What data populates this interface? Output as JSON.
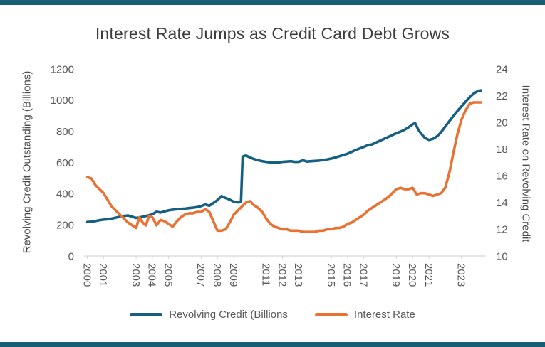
{
  "palette": {
    "accent_teal": "#156082",
    "accent_orange": "#E97132",
    "frame_bar": "#175E74",
    "title_text": "#3d3d3d",
    "axis_text": "#595959",
    "axis_line": "#d6d6d6"
  },
  "chart_data": {
    "type": "line",
    "title": "Interest Rate Jumps as Credit Card Debt Grows",
    "grid": false,
    "legend_position": "bottom",
    "x_range": [
      1999.8,
      24.7
    ],
    "x_domain": [
      1999.8,
      2024.5
    ],
    "x_tick_years": [
      2000,
      2001,
      2003,
      2004,
      2005,
      2007,
      2008,
      2009,
      2011,
      2012,
      2013,
      2015,
      2016,
      2017,
      2019,
      2020,
      2021,
      2023
    ],
    "x_tick_labels": [
      "2000",
      "2001",
      "2003",
      "2004",
      "2005",
      "2007",
      "2008",
      "2009",
      "2011",
      "2012",
      "2013",
      "2015",
      "2016",
      "2017",
      "2019",
      "2020",
      "2021",
      "2023"
    ],
    "left_axis": {
      "title": "Revolving Credit Outstanding (Billions)",
      "min": 0,
      "max": 1200,
      "step": 200,
      "ticks": [
        0,
        200,
        400,
        600,
        800,
        1000,
        1200
      ]
    },
    "right_axis": {
      "title": "Interest Rate on Revolving Credit",
      "min": 10,
      "max": 24,
      "step": 2,
      "ticks": [
        10,
        12,
        14,
        16,
        18,
        20,
        22,
        24
      ]
    },
    "series": [
      {
        "name": "Revolving Credit (Billions",
        "axis": "left",
        "color": "#156082",
        "points": [
          [
            2000.0,
            218
          ],
          [
            2000.25,
            220
          ],
          [
            2000.5,
            224
          ],
          [
            2000.75,
            230
          ],
          [
            2001.0,
            233
          ],
          [
            2001.25,
            236
          ],
          [
            2001.5,
            240
          ],
          [
            2001.75,
            246
          ],
          [
            2002.0,
            252
          ],
          [
            2002.25,
            257
          ],
          [
            2002.5,
            260
          ],
          [
            2002.75,
            252
          ],
          [
            2003.0,
            244
          ],
          [
            2003.25,
            248
          ],
          [
            2003.5,
            254
          ],
          [
            2003.75,
            260
          ],
          [
            2004.0,
            268
          ],
          [
            2004.25,
            284
          ],
          [
            2004.5,
            279
          ],
          [
            2004.75,
            286
          ],
          [
            2005.0,
            293
          ],
          [
            2005.25,
            297
          ],
          [
            2005.5,
            300
          ],
          [
            2005.75,
            302
          ],
          [
            2006.0,
            304
          ],
          [
            2006.25,
            307
          ],
          [
            2006.5,
            310
          ],
          [
            2006.75,
            314
          ],
          [
            2007.0,
            320
          ],
          [
            2007.25,
            331
          ],
          [
            2007.5,
            322
          ],
          [
            2007.75,
            340
          ],
          [
            2008.0,
            358
          ],
          [
            2008.25,
            384
          ],
          [
            2008.5,
            372
          ],
          [
            2008.75,
            362
          ],
          [
            2009.0,
            348
          ],
          [
            2009.25,
            344
          ],
          [
            2009.45,
            350
          ],
          [
            2009.55,
            638
          ],
          [
            2009.75,
            645
          ],
          [
            2010.0,
            632
          ],
          [
            2010.25,
            622
          ],
          [
            2010.5,
            614
          ],
          [
            2010.75,
            608
          ],
          [
            2011.0,
            604
          ],
          [
            2011.25,
            600
          ],
          [
            2011.5,
            598
          ],
          [
            2011.75,
            600
          ],
          [
            2012.0,
            604
          ],
          [
            2012.25,
            606
          ],
          [
            2012.5,
            608
          ],
          [
            2012.75,
            604
          ],
          [
            2013.0,
            604
          ],
          [
            2013.25,
            614
          ],
          [
            2013.5,
            606
          ],
          [
            2013.75,
            608
          ],
          [
            2014.0,
            610
          ],
          [
            2014.25,
            612
          ],
          [
            2014.5,
            616
          ],
          [
            2014.75,
            620
          ],
          [
            2015.0,
            625
          ],
          [
            2015.25,
            632
          ],
          [
            2015.5,
            640
          ],
          [
            2015.75,
            648
          ],
          [
            2016.0,
            656
          ],
          [
            2016.25,
            668
          ],
          [
            2016.5,
            680
          ],
          [
            2016.75,
            690
          ],
          [
            2017.0,
            700
          ],
          [
            2017.25,
            712
          ],
          [
            2017.5,
            716
          ],
          [
            2017.75,
            728
          ],
          [
            2018.0,
            740
          ],
          [
            2018.25,
            752
          ],
          [
            2018.5,
            764
          ],
          [
            2018.75,
            776
          ],
          [
            2019.0,
            788
          ],
          [
            2019.25,
            798
          ],
          [
            2019.5,
            810
          ],
          [
            2019.75,
            826
          ],
          [
            2020.0,
            845
          ],
          [
            2020.15,
            853
          ],
          [
            2020.35,
            810
          ],
          [
            2020.5,
            788
          ],
          [
            2020.75,
            758
          ],
          [
            2021.0,
            745
          ],
          [
            2021.25,
            752
          ],
          [
            2021.5,
            768
          ],
          [
            2021.75,
            795
          ],
          [
            2022.0,
            830
          ],
          [
            2022.25,
            864
          ],
          [
            2022.5,
            898
          ],
          [
            2022.75,
            930
          ],
          [
            2023.0,
            960
          ],
          [
            2023.25,
            990
          ],
          [
            2023.5,
            1018
          ],
          [
            2023.75,
            1042
          ],
          [
            2024.0,
            1058
          ],
          [
            2024.2,
            1062
          ]
        ]
      },
      {
        "name": "Interest Rate",
        "axis": "right",
        "color": "#E97132",
        "points": [
          [
            2000.0,
            15.9
          ],
          [
            2000.25,
            15.8
          ],
          [
            2000.5,
            15.3
          ],
          [
            2000.75,
            15.0
          ],
          [
            2001.0,
            14.7
          ],
          [
            2001.25,
            14.2
          ],
          [
            2001.5,
            13.7
          ],
          [
            2001.75,
            13.4
          ],
          [
            2002.0,
            13.1
          ],
          [
            2002.25,
            12.8
          ],
          [
            2002.5,
            12.5
          ],
          [
            2002.75,
            12.3
          ],
          [
            2003.0,
            12.1
          ],
          [
            2003.2,
            12.9
          ],
          [
            2003.4,
            12.5
          ],
          [
            2003.6,
            12.3
          ],
          [
            2003.8,
            13.0
          ],
          [
            2004.0,
            12.9
          ],
          [
            2004.25,
            12.3
          ],
          [
            2004.5,
            12.7
          ],
          [
            2004.75,
            12.6
          ],
          [
            2005.0,
            12.4
          ],
          [
            2005.25,
            12.2
          ],
          [
            2005.5,
            12.6
          ],
          [
            2005.75,
            12.9
          ],
          [
            2006.0,
            13.1
          ],
          [
            2006.25,
            13.2
          ],
          [
            2006.5,
            13.2
          ],
          [
            2006.75,
            13.3
          ],
          [
            2007.0,
            13.3
          ],
          [
            2007.25,
            13.5
          ],
          [
            2007.5,
            13.3
          ],
          [
            2007.75,
            12.6
          ],
          [
            2008.0,
            11.9
          ],
          [
            2008.25,
            11.9
          ],
          [
            2008.5,
            12.0
          ],
          [
            2008.75,
            12.5
          ],
          [
            2009.0,
            13.1
          ],
          [
            2009.25,
            13.4
          ],
          [
            2009.5,
            13.7
          ],
          [
            2009.75,
            14.0
          ],
          [
            2010.0,
            14.1
          ],
          [
            2010.25,
            13.8
          ],
          [
            2010.5,
            13.6
          ],
          [
            2010.75,
            13.3
          ],
          [
            2011.0,
            12.8
          ],
          [
            2011.25,
            12.4
          ],
          [
            2011.5,
            12.2
          ],
          [
            2011.75,
            12.1
          ],
          [
            2012.0,
            12.0
          ],
          [
            2012.25,
            12.0
          ],
          [
            2012.5,
            11.9
          ],
          [
            2012.75,
            11.9
          ],
          [
            2013.0,
            11.9
          ],
          [
            2013.25,
            11.8
          ],
          [
            2013.5,
            11.8
          ],
          [
            2013.75,
            11.8
          ],
          [
            2014.0,
            11.8
          ],
          [
            2014.25,
            11.9
          ],
          [
            2014.5,
            11.9
          ],
          [
            2014.75,
            12.0
          ],
          [
            2015.0,
            12.0
          ],
          [
            2015.25,
            12.1
          ],
          [
            2015.5,
            12.1
          ],
          [
            2015.75,
            12.2
          ],
          [
            2016.0,
            12.4
          ],
          [
            2016.25,
            12.5
          ],
          [
            2016.5,
            12.7
          ],
          [
            2016.75,
            12.9
          ],
          [
            2017.0,
            13.1
          ],
          [
            2017.25,
            13.4
          ],
          [
            2017.5,
            13.6
          ],
          [
            2017.75,
            13.8
          ],
          [
            2018.0,
            14.0
          ],
          [
            2018.25,
            14.2
          ],
          [
            2018.5,
            14.4
          ],
          [
            2018.75,
            14.7
          ],
          [
            2019.0,
            15.0
          ],
          [
            2019.25,
            15.1
          ],
          [
            2019.5,
            15.0
          ],
          [
            2019.75,
            15.0
          ],
          [
            2020.0,
            15.1
          ],
          [
            2020.25,
            14.6
          ],
          [
            2020.5,
            14.7
          ],
          [
            2020.75,
            14.7
          ],
          [
            2021.0,
            14.6
          ],
          [
            2021.25,
            14.5
          ],
          [
            2021.5,
            14.6
          ],
          [
            2021.75,
            14.7
          ],
          [
            2022.0,
            15.1
          ],
          [
            2022.25,
            16.2
          ],
          [
            2022.5,
            17.7
          ],
          [
            2022.75,
            19.1
          ],
          [
            2023.0,
            20.2
          ],
          [
            2023.25,
            20.9
          ],
          [
            2023.5,
            21.4
          ],
          [
            2023.75,
            21.5
          ],
          [
            2024.0,
            21.5
          ],
          [
            2024.2,
            21.5
          ]
        ]
      }
    ]
  }
}
